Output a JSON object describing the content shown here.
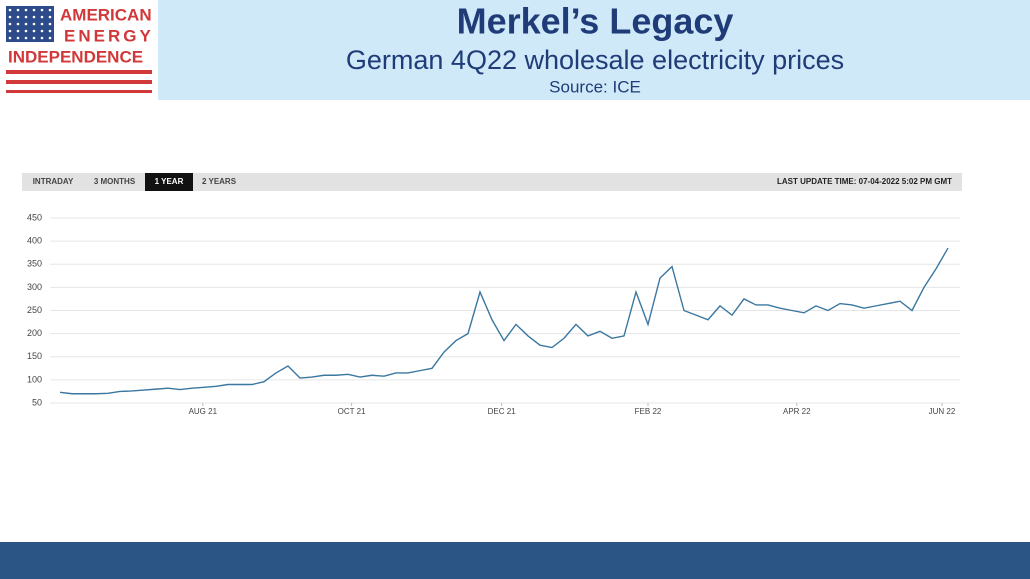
{
  "logo": {
    "lines": [
      "AMERICAN",
      "ENERGY",
      "INDEPENDENCE"
    ]
  },
  "header": {
    "title": "Merkel’s Legacy",
    "subtitle": "German 4Q22 wholesale electricity prices",
    "source": "Source: ICE"
  },
  "tabs": {
    "items": [
      "INTRADAY",
      "3 MONTHS",
      "1 YEAR",
      "2 YEARS"
    ],
    "active": 2,
    "last_update": "LAST UPDATE TIME: 07-04-2022 5:02 PM GMT"
  },
  "chart_data": {
    "type": "line",
    "color": "#3b77a0",
    "grid": true,
    "x": [
      0,
      1,
      2,
      3,
      4,
      5,
      6,
      7,
      8,
      9,
      10,
      11,
      12,
      13,
      14,
      15,
      16,
      17,
      18,
      19,
      20,
      21,
      22,
      23,
      24,
      25,
      26,
      27,
      28,
      29,
      30,
      31,
      32,
      33,
      34,
      35,
      36,
      37,
      38,
      39,
      40,
      41,
      42,
      43,
      44,
      45,
      46,
      47,
      48,
      49,
      50,
      51,
      52,
      53,
      54,
      55,
      56,
      57,
      58,
      59,
      60,
      61,
      62,
      63,
      64,
      65,
      66,
      67,
      68,
      69,
      70,
      71,
      72,
      73,
      74
    ],
    "values": [
      73,
      70,
      70,
      70,
      71,
      75,
      76,
      78,
      80,
      82,
      79,
      82,
      84,
      86,
      90,
      90,
      90,
      96,
      115,
      130,
      104,
      106,
      110,
      110,
      112,
      106,
      110,
      108,
      115,
      115,
      120,
      125,
      160,
      185,
      200,
      290,
      230,
      185,
      220,
      195,
      175,
      170,
      190,
      220,
      195,
      205,
      190,
      195,
      290,
      220,
      320,
      345,
      250,
      240,
      230,
      260,
      240,
      275,
      262,
      262,
      255,
      250,
      245,
      260,
      250,
      265,
      262,
      255,
      260,
      265,
      270,
      250,
      300,
      340,
      385
    ],
    "xlim": [
      0,
      74
    ],
    "xticks": [
      {
        "value": 11.9,
        "label": "AUG 21"
      },
      {
        "value": 24.3,
        "label": "OCT 21"
      },
      {
        "value": 36.8,
        "label": "DEC 21"
      },
      {
        "value": 49,
        "label": "FEB 22"
      },
      {
        "value": 61.4,
        "label": "APR 22"
      },
      {
        "value": 73.5,
        "label": "JUN 22"
      }
    ],
    "ylim": [
      50,
      450
    ],
    "yticks": [
      50,
      100,
      150,
      200,
      250,
      300,
      350,
      400,
      450
    ]
  }
}
